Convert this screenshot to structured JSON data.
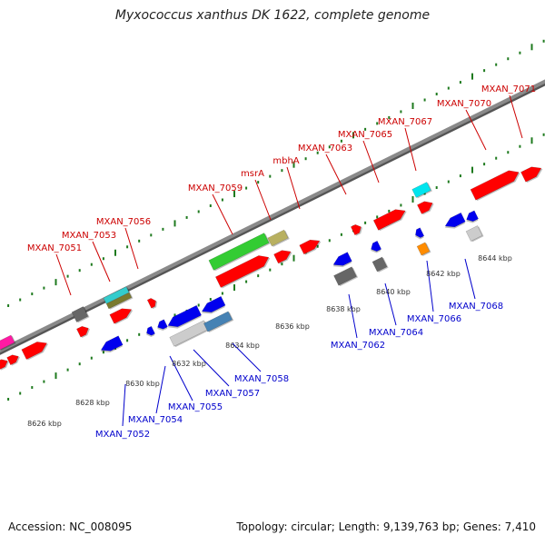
{
  "title": "Myxococcus xanthus DK 1622, complete genome",
  "footer": {
    "accession": "Accession: NC_008095",
    "topology": "Topology: circular; Length: 9,139,763 bp; Genes: 7,410"
  },
  "colors": {
    "backbone": "#8a8a8a",
    "tick": "#1e7a1e",
    "plus_label": "#cc0000",
    "minus_label": "#0000cc",
    "scale_label": "#333333"
  },
  "scale_labels": [
    "8626 kbp",
    "8628 kbp",
    "8630 kbp",
    "8632 kbp",
    "8634 kbp",
    "8636 kbp",
    "8638 kbp",
    "8640 kbp",
    "8642 kbp",
    "8644 kbp"
  ],
  "plus_genes": [
    {
      "name": "MXAN_7051"
    },
    {
      "name": "MXAN_7053"
    },
    {
      "name": "MXAN_7056"
    },
    {
      "name": "MXAN_7059"
    },
    {
      "name": "msrA"
    },
    {
      "name": "mbhA"
    },
    {
      "name": "MXAN_7063"
    },
    {
      "name": "MXAN_7065"
    },
    {
      "name": "MXAN_7067"
    },
    {
      "name": "MXAN_7070"
    },
    {
      "name": "MXAN_7071"
    }
  ],
  "minus_genes": [
    {
      "name": "MXAN_7052"
    },
    {
      "name": "MXAN_7054"
    },
    {
      "name": "MXAN_7055"
    },
    {
      "name": "MXAN_7057"
    },
    {
      "name": "MXAN_7058"
    },
    {
      "name": "MXAN_7062"
    },
    {
      "name": "MXAN_7064"
    },
    {
      "name": "MXAN_7066"
    },
    {
      "name": "MXAN_7068"
    }
  ]
}
